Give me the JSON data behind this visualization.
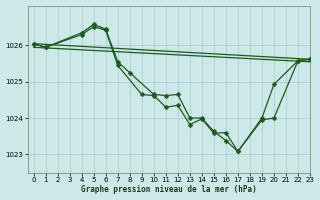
{
  "title": "Graphe pression niveau de la mer (hPa)",
  "bg_color": "#cce8e8",
  "grid_color": "#aacccc",
  "line_color": "#1a5c1a",
  "xlim": [
    -0.5,
    23
  ],
  "ylim": [
    1022.5,
    1027.1
  ],
  "yticks": [
    1023,
    1024,
    1025,
    1026
  ],
  "xticks": [
    0,
    1,
    2,
    3,
    4,
    5,
    6,
    7,
    8,
    9,
    10,
    11,
    12,
    13,
    14,
    15,
    16,
    17,
    18,
    19,
    20,
    21,
    22,
    23
  ],
  "series": [
    {
      "x": [
        0,
        23
      ],
      "y": [
        1026.05,
        1025.62
      ],
      "marker": false,
      "lw": 0.9
    },
    {
      "x": [
        0,
        23
      ],
      "y": [
        1025.95,
        1025.55
      ],
      "marker": false,
      "lw": 0.9
    },
    {
      "x": [
        0,
        1,
        4,
        5,
        6,
        7,
        8,
        10,
        11,
        12,
        13,
        14,
        15,
        16,
        17,
        19,
        20,
        22,
        23
      ],
      "y": [
        1026.05,
        1025.95,
        1026.35,
        1026.58,
        1026.45,
        1025.55,
        1025.25,
        1024.65,
        1024.62,
        1024.65,
        1024.0,
        1024.0,
        1023.63,
        1023.38,
        1023.08,
        1023.95,
        1024.0,
        1025.58,
        1025.62
      ],
      "marker": true,
      "lw": 0.9
    },
    {
      "x": [
        0,
        1,
        4,
        5,
        6,
        7,
        9,
        10,
        11,
        12,
        13,
        14,
        15,
        16,
        17,
        19,
        20,
        22,
        23
      ],
      "y": [
        1026.05,
        1025.95,
        1026.3,
        1026.52,
        1026.42,
        1025.45,
        1024.65,
        1024.62,
        1024.3,
        1024.35,
        1023.82,
        1023.98,
        1023.58,
        1023.6,
        1023.08,
        1024.0,
        1024.93,
        1025.58,
        1025.62
      ],
      "marker": true,
      "lw": 0.9
    }
  ]
}
